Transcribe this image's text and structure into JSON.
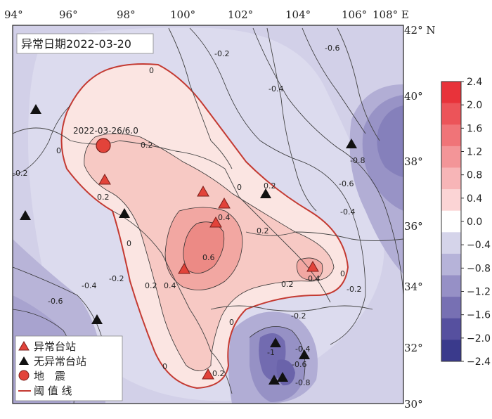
{
  "map": {
    "anomaly_date_label": "异常日期2022-03-20",
    "earthquake_label": "2022-03-26/6.0",
    "lon_ticks": [
      "94°",
      "96°",
      "98°",
      "100°",
      "102°",
      "104°",
      "106°",
      "108° E"
    ],
    "lat_ticks": [
      "42° N",
      "40°",
      "38°",
      "36°",
      "34°",
      "32°",
      "30°"
    ],
    "contour_labels": [
      "0",
      "0.2",
      "0.4",
      "0.6",
      "-0.2",
      "-0.4",
      "-0.6",
      "-0.8",
      "-1"
    ]
  },
  "colorbar": {
    "ticks": [
      "2.4",
      "2.0",
      "1.6",
      "1.2",
      "0.8",
      "0.4",
      "0.0",
      "−0.4",
      "−0.8",
      "−1.2",
      "−1.6",
      "−2.0",
      "−2.4"
    ],
    "colors": [
      "#e8333a",
      "#ec5459",
      "#f07478",
      "#f39598",
      "#f7b5b7",
      "#fbd4d5",
      "#ffffff",
      "#d5d4ea",
      "#b6b3d9",
      "#9690c6",
      "#7770b3",
      "#56509f",
      "#3a3a8c"
    ]
  },
  "legend": {
    "anomaly_station": "异常台站",
    "normal_station": "无异常台站",
    "earthquake": "地　震",
    "threshold_line": "阈 值 线"
  },
  "colors": {
    "threshold": "#c43a32",
    "station_anomaly": "#e2433a",
    "station_normal": "#111111",
    "background_negative": "#c9c6e2",
    "positive_zone": "#fbe6e3"
  }
}
